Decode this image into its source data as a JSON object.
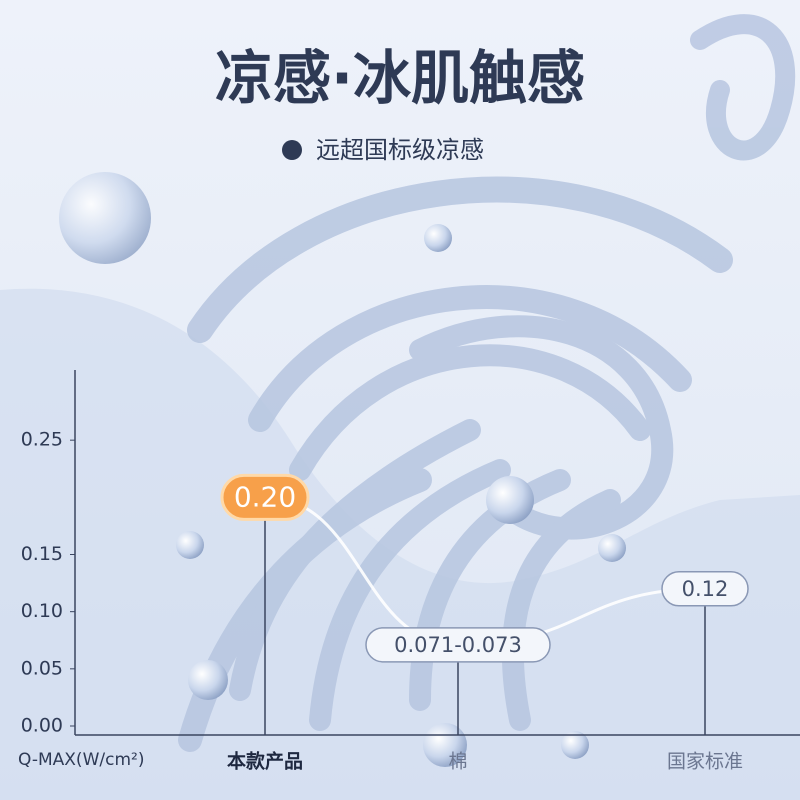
{
  "chart_data": {
    "type": "line",
    "title": "凉感·冰肌触感",
    "subtitle": "远超国标级凉感",
    "x_label": "Q-MAX(W/cm²)",
    "categories": [
      "本款产品",
      "棉",
      "国家标准"
    ],
    "values": [
      0.2,
      0.071,
      0.12
    ],
    "value_labels": [
      "0.20",
      "0.071-0.073",
      "0.12"
    ],
    "color": "#ffffff",
    "ylim": [
      0,
      0.3
    ],
    "yticks": [
      {
        "value": 0,
        "label": "0.00"
      },
      0.05,
      {
        "value": 0.1,
        "label": "0.10"
      },
      0.15,
      0.25
    ]
  }
}
